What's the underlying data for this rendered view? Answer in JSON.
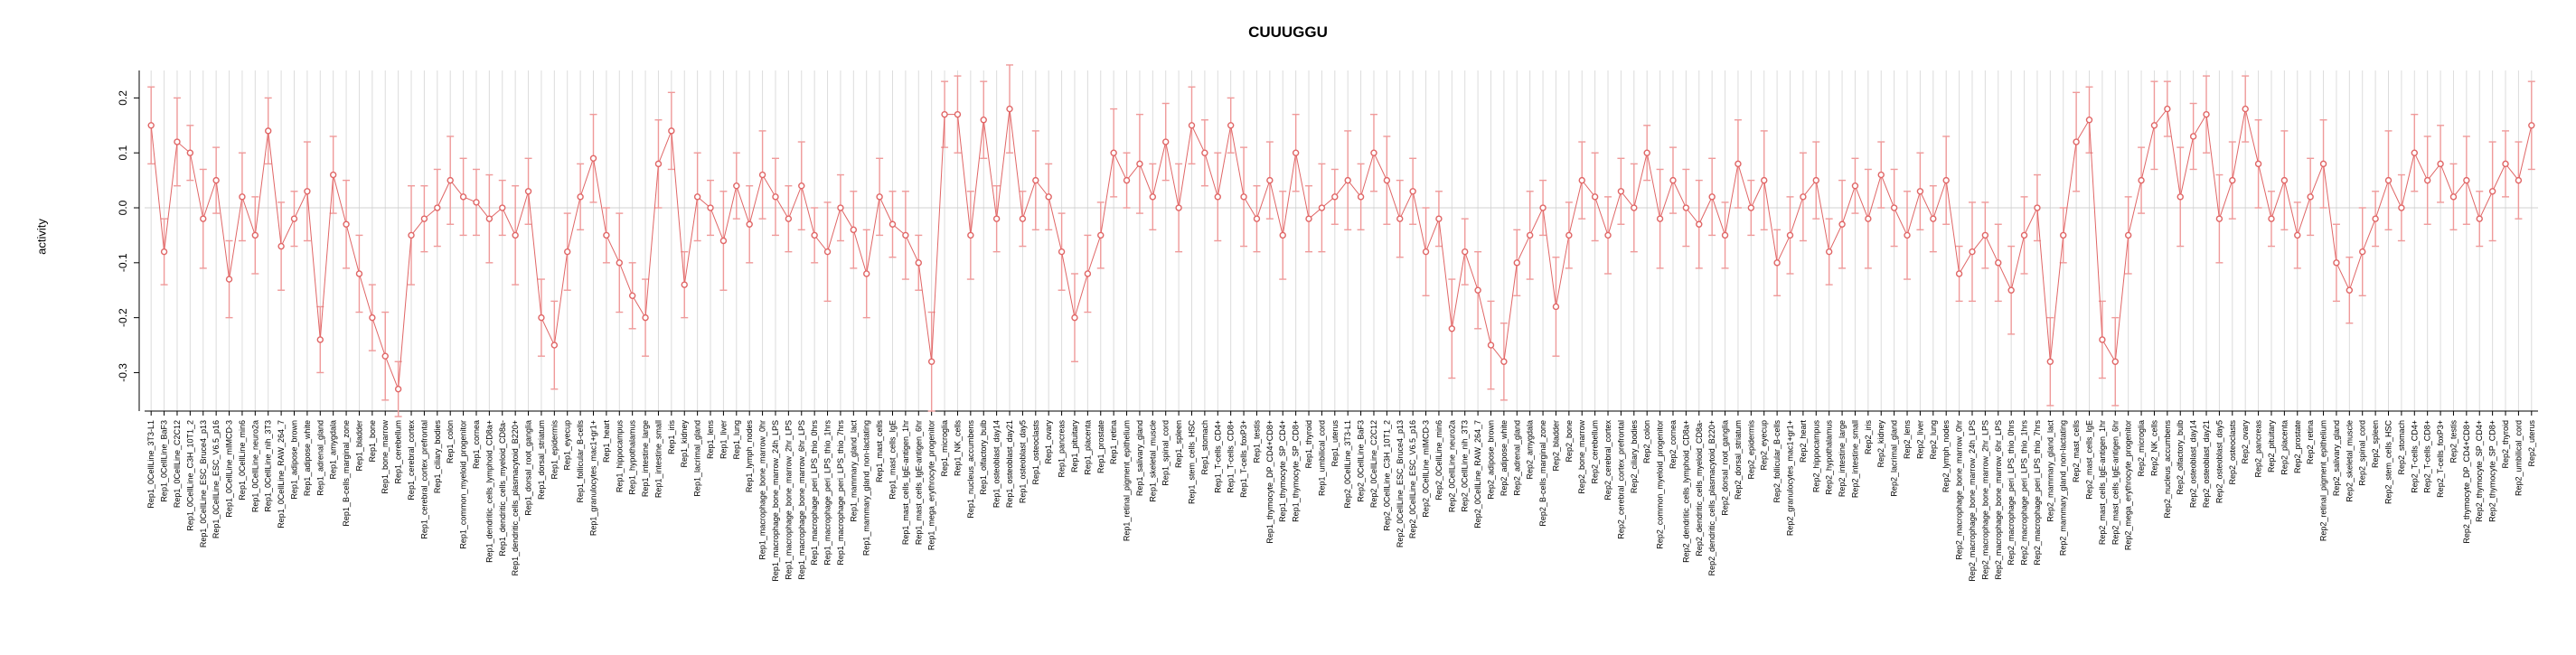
{
  "page": {
    "background": "#ffffff"
  },
  "chart_data": {
    "type": "line",
    "title": "CUUUGGU",
    "xlabel": "",
    "ylabel": "activity",
    "ylim": [
      -0.37,
      0.25
    ],
    "yticks": [
      0.2,
      0.1,
      0.0,
      -0.1,
      -0.2,
      -0.3
    ],
    "grid": "vertical-per-category",
    "legend": "none",
    "point_style": "open-circle-with-error-bars",
    "point_color": "#e06666",
    "error_bar_color": "#ef9a9a",
    "grid_color": "#dcdcdc",
    "zero_line_color": "#d0d0d0",
    "axis_color": "#000000",
    "categories": [
      "Rep1_0CellLine_3T3-L1",
      "Rep1_0CellLine_BaF3",
      "Rep1_0CellLine_C2C12",
      "Rep1_0CellLine_C3H_10T1_2",
      "Rep1_0CellLine_ESC_Bruce4_p13",
      "Rep1_0CellLine_ESC_V6.5_p16",
      "Rep1_0CellLine_mIMCD-3",
      "Rep1_0CellLine_min6",
      "Rep1_0CellLine_neuro2a",
      "Rep1_0CellLine_nih_3T3",
      "Rep1_0CellLine_RAW_264_7",
      "Rep1_adipose_brown",
      "Rep1_adipose_white",
      "Rep1_adrenal_gland",
      "Rep1_amygdala",
      "Rep1_B-cells_marginal_zone",
      "Rep1_bladder",
      "Rep1_bone",
      "Rep1_bone_marrow",
      "Rep1_cerebellum",
      "Rep1_cerebral_cortex",
      "Rep1_cerebral_cortex_prefrontal",
      "Rep1_ciliary_bodies",
      "Rep1_colon",
      "Rep1_common_myeloid_progenitor",
      "Rep1_cornea",
      "Rep1_dendritic_cells_lymphoid_CD8a+",
      "Rep1_dendritic_cells_myeloid_CD8a-",
      "Rep1_dendritic_cells_plasmacytoid_B220+",
      "Rep1_dorsal_root_ganglia",
      "Rep1_dorsal_striatum",
      "Rep1_epidermis",
      "Rep1_eyecup",
      "Rep1_follicular_B-cells",
      "Rep1_granulocytes_mac1+gr1+",
      "Rep1_heart",
      "Rep1_hippocampus",
      "Rep1_hypothalamus",
      "Rep1_intestine_large",
      "Rep1_intestine_small",
      "Rep1_iris",
      "Rep1_kidney",
      "Rep1_lacrimal_gland",
      "Rep1_lens",
      "Rep1_liver",
      "Rep1_lung",
      "Rep1_lymph_nodes",
      "Rep1_macrophage_bone_marrow_0hr",
      "Rep1_macrophage_bone_marrow_24h_LPS",
      "Rep1_macrophage_bone_marrow_2hr_LPS",
      "Rep1_macrophage_bone_marrow_6hr_LPS",
      "Rep1_macrophage_peri_LPS_thio_0hrs",
      "Rep1_macrophage_peri_LPS_thio_1hrs",
      "Rep1_macrophage_peri_LPS_thio_7hrs",
      "Rep1_mammary_gland_lact",
      "Rep1_mammary_gland_non-lactating",
      "Rep1_mast_cells",
      "Rep1_mast_cells_IgE",
      "Rep1_mast_cells_IgE-antigen_1hr",
      "Rep1_mast_cells_IgE-antigen_6hr",
      "Rep1_mega_erythrocyte_progenitor",
      "Rep1_microglia",
      "Rep1_NK_cells",
      "Rep1_nucleus_accumbens",
      "Rep1_olfactory_bulb",
      "Rep1_osteoblast_day14",
      "Rep1_osteoblast_day21",
      "Rep1_osteoblast_day5",
      "Rep1_osteoclasts",
      "Rep1_ovary",
      "Rep1_pancreas",
      "Rep1_pituitary",
      "Rep1_placenta",
      "Rep1_prostate",
      "Rep1_retina",
      "Rep1_retinal_pigment_epithelium",
      "Rep1_salivary_gland",
      "Rep1_skeletal_muscle",
      "Rep1_spinal_cord",
      "Rep1_spleen",
      "Rep1_stem_cells_HSC",
      "Rep1_stomach",
      "Rep1_T-cells_CD4+",
      "Rep1_T-cells_CD8+",
      "Rep1_T-cells_foxP3+",
      "Rep1_testis",
      "Rep1_thymocyte_DP_CD4+CD8+",
      "Rep1_thymocyte_SP_CD4+",
      "Rep1_thymocyte_SP_CD8+",
      "Rep1_thyroid",
      "Rep1_umbilical_cord",
      "Rep1_uterus",
      "Rep2_0CellLine_3T3-L1",
      "Rep2_0CellLine_BaF3",
      "Rep2_0CellLine_C2C12",
      "Rep2_0CellLine_C3H_10T1_2",
      "Rep2_0CellLine_ESC_Bruce4_p13",
      "Rep2_0CellLine_ESC_V6.5_p16",
      "Rep2_0CellLine_mIMCD-3",
      "Rep2_0CellLine_min6",
      "Rep2_0CellLine_neuro2a",
      "Rep2_0CellLine_nih_3T3",
      "Rep2_0CellLine_RAW_264_7",
      "Rep2_adipose_brown",
      "Rep2_adipose_white",
      "Rep2_adrenal_gland",
      "Rep2_amygdala",
      "Rep2_B-cells_marginal_zone",
      "Rep2_bladder",
      "Rep2_bone",
      "Rep2_bone_marrow",
      "Rep2_cerebellum",
      "Rep2_cerebral_cortex",
      "Rep2_cerebral_cortex_prefrontal",
      "Rep2_ciliary_bodies",
      "Rep2_colon",
      "Rep2_common_myeloid_progenitor",
      "Rep2_cornea",
      "Rep2_dendritic_cells_lymphoid_CD8a+",
      "Rep2_dendritic_cells_myeloid_CD8a-",
      "Rep2_dendritic_cells_plasmacytoid_B220+",
      "Rep2_dorsal_root_ganglia",
      "Rep2_dorsal_striatum",
      "Rep2_epidermis",
      "Rep2_eyecup",
      "Rep2_follicular_B-cells",
      "Rep2_granulocytes_mac1+gr1+",
      "Rep2_heart",
      "Rep2_hippocampus",
      "Rep2_hypothalamus",
      "Rep2_intestine_large",
      "Rep2_intestine_small",
      "Rep2_iris",
      "Rep2_kidney",
      "Rep2_lacrimal_gland",
      "Rep2_lens",
      "Rep2_liver",
      "Rep2_lung",
      "Rep2_lymph_nodes",
      "Rep2_macrophage_bone_marrow_0hr",
      "Rep2_macrophage_bone_marrow_24h_LPS",
      "Rep2_macrophage_bone_marrow_2hr_LPS",
      "Rep2_macrophage_bone_marrow_6hr_LPS",
      "Rep2_macrophage_peri_LPS_thio_0hrs",
      "Rep2_macrophage_peri_LPS_thio_1hrs",
      "Rep2_macrophage_peri_LPS_thio_7hrs",
      "Rep2_mammary_gland_lact",
      "Rep2_mammary_gland_non-lactating",
      "Rep2_mast_cells",
      "Rep2_mast_cells_IgE",
      "Rep2_mast_cells_IgE-antigen_1hr",
      "Rep2_mast_cells_IgE-antigen_6hr",
      "Rep2_mega_erythrocyte_progenitor",
      "Rep2_microglia",
      "Rep2_NK_cells",
      "Rep2_nucleus_accumbens",
      "Rep2_olfactory_bulb",
      "Rep2_osteoblast_day14",
      "Rep2_osteoblast_day21",
      "Rep2_osteoblast_day5",
      "Rep2_osteoclasts",
      "Rep2_ovary",
      "Rep2_pancreas",
      "Rep2_pituitary",
      "Rep2_placenta",
      "Rep2_prostate",
      "Rep2_retina",
      "Rep2_retinal_pigment_epithelium",
      "Rep2_salivary_gland",
      "Rep2_skeletal_muscle",
      "Rep2_spinal_cord",
      "Rep2_spleen",
      "Rep2_stem_cells_HSC",
      "Rep2_stomach",
      "Rep2_T-cells_CD4+",
      "Rep2_T-cells_CD8+",
      "Rep2_T-cells_foxP3+",
      "Rep2_testis",
      "Rep2_thymocyte_DP_CD4+CD8+",
      "Rep2_thymocyte_SP_CD4+",
      "Rep2_thymocyte_SP_CD8+",
      "Rep2_thyroid",
      "Rep2_umbilical_cord",
      "Rep2_uterus"
    ],
    "values": [
      0.15,
      -0.08,
      0.12,
      0.1,
      -0.02,
      0.05,
      -0.13,
      0.02,
      -0.05,
      0.14,
      -0.07,
      -0.02,
      0.03,
      -0.24,
      0.06,
      -0.03,
      -0.12,
      -0.2,
      -0.27,
      -0.33,
      -0.05,
      -0.02,
      0.0,
      0.05,
      0.02,
      0.01,
      -0.02,
      0.0,
      -0.05,
      0.03,
      -0.2,
      -0.25,
      -0.08,
      0.02,
      0.09,
      -0.05,
      -0.1,
      -0.16,
      -0.2,
      0.08,
      0.14,
      -0.14,
      0.02,
      0.0,
      -0.06,
      0.04,
      -0.03,
      0.06,
      0.02,
      -0.02,
      0.04,
      -0.05,
      -0.08,
      0.0,
      -0.04,
      -0.12,
      0.02,
      -0.03,
      -0.05,
      -0.1,
      -0.28,
      0.17,
      0.17,
      -0.05,
      0.16,
      -0.02,
      0.18,
      -0.02,
      0.05,
      0.02,
      -0.08,
      -0.2,
      -0.12,
      -0.05,
      0.1,
      0.05,
      0.08,
      0.02,
      0.12,
      0.0,
      0.15,
      0.1,
      0.02,
      0.15,
      0.02,
      -0.02,
      0.05,
      -0.05,
      0.1,
      -0.02,
      0.0,
      0.02,
      0.05,
      0.02,
      0.1,
      0.05,
      -0.02,
      0.03,
      -0.08,
      -0.02,
      -0.22,
      -0.08,
      -0.15,
      -0.25,
      -0.28,
      -0.1,
      -0.05,
      0.0,
      -0.18,
      -0.05,
      0.05,
      0.02,
      -0.05,
      0.03,
      0.0,
      0.1,
      -0.02,
      0.05,
      0.0,
      -0.03,
      0.02,
      -0.05,
      0.08,
      0.0,
      0.05,
      -0.1,
      -0.05,
      0.02,
      0.05,
      -0.08,
      -0.03,
      0.04,
      -0.02,
      0.06,
      0.0,
      -0.05,
      0.03,
      -0.02,
      0.05,
      -0.12,
      -0.08,
      -0.05,
      -0.1,
      -0.15,
      -0.05,
      0.0,
      -0.28,
      -0.05,
      0.12,
      0.16,
      -0.24,
      -0.28,
      -0.05,
      0.05,
      0.15,
      0.18,
      0.02,
      0.13,
      0.17,
      -0.02,
      0.05,
      0.18,
      0.08,
      -0.02,
      0.05,
      -0.05,
      0.02,
      0.08,
      -0.1,
      -0.15,
      -0.08,
      -0.02,
      0.05,
      0.0,
      0.1,
      0.05,
      0.08,
      0.02,
      0.05,
      -0.02,
      0.03,
      0.08,
      0.05,
      0.15
    ],
    "errors": [
      0.07,
      0.06,
      0.08,
      0.05,
      0.09,
      0.06,
      0.07,
      0.08,
      0.07,
      0.06,
      0.08,
      0.05,
      0.09,
      0.06,
      0.07,
      0.08,
      0.07,
      0.06,
      0.08,
      0.05,
      0.09,
      0.06,
      0.07,
      0.08,
      0.07,
      0.06,
      0.08,
      0.05,
      0.09,
      0.06,
      0.07,
      0.08,
      0.07,
      0.06,
      0.08,
      0.05,
      0.09,
      0.06,
      0.07,
      0.08,
      0.07,
      0.06,
      0.08,
      0.05,
      0.09,
      0.06,
      0.07,
      0.08,
      0.07,
      0.06,
      0.08,
      0.05,
      0.09,
      0.06,
      0.07,
      0.08,
      0.07,
      0.06,
      0.08,
      0.05,
      0.09,
      0.06,
      0.07,
      0.08,
      0.07,
      0.06,
      0.08,
      0.05,
      0.09,
      0.06,
      0.07,
      0.08,
      0.07,
      0.06,
      0.08,
      0.05,
      0.09,
      0.06,
      0.07,
      0.08,
      0.07,
      0.06,
      0.08,
      0.05,
      0.09,
      0.06,
      0.07,
      0.08,
      0.07,
      0.06,
      0.08,
      0.05,
      0.09,
      0.06,
      0.07,
      0.08,
      0.07,
      0.06,
      0.08,
      0.05,
      0.09,
      0.06,
      0.07,
      0.08,
      0.07,
      0.06,
      0.08,
      0.05,
      0.09,
      0.06,
      0.07,
      0.08,
      0.07,
      0.06,
      0.08,
      0.05,
      0.09,
      0.06,
      0.07,
      0.08,
      0.07,
      0.06,
      0.08,
      0.05,
      0.09,
      0.06,
      0.07,
      0.08,
      0.07,
      0.06,
      0.08,
      0.05,
      0.09,
      0.06,
      0.07,
      0.08,
      0.07,
      0.06,
      0.08,
      0.05,
      0.09,
      0.06,
      0.07,
      0.08,
      0.07,
      0.06,
      0.08,
      0.05,
      0.09,
      0.06,
      0.07,
      0.08,
      0.07,
      0.06,
      0.08,
      0.05,
      0.09,
      0.06,
      0.07,
      0.08,
      0.07,
      0.06,
      0.08,
      0.05,
      0.09,
      0.06,
      0.07,
      0.08,
      0.07,
      0.06,
      0.08,
      0.05,
      0.09,
      0.06,
      0.07,
      0.08,
      0.07,
      0.06,
      0.08,
      0.05,
      0.09,
      0.06,
      0.07,
      0.08
    ]
  }
}
